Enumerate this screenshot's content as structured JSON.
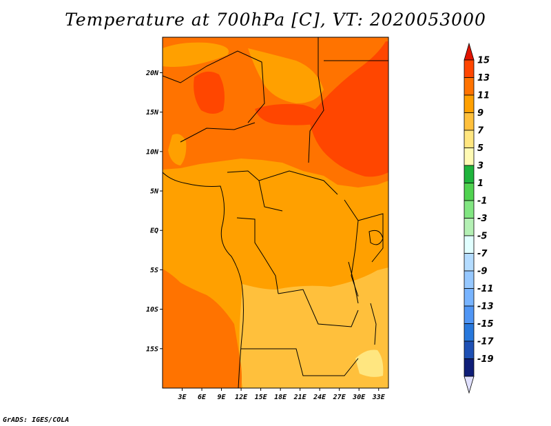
{
  "title": "Temperature at 700hPa [C], VT: 2020053000",
  "credit": "GrADS: IGES/COLA",
  "map": {
    "lon_range": [
      0,
      34.5
    ],
    "lat_range": [
      -20,
      24.5
    ],
    "lon_ticks": [
      {
        "value": 3,
        "label": "3E"
      },
      {
        "value": 6,
        "label": "6E"
      },
      {
        "value": 9,
        "label": "9E"
      },
      {
        "value": 12,
        "label": "12E"
      },
      {
        "value": 15,
        "label": "15E"
      },
      {
        "value": 18,
        "label": "18E"
      },
      {
        "value": 21,
        "label": "21E"
      },
      {
        "value": 24,
        "label": "24E"
      },
      {
        "value": 27,
        "label": "27E"
      },
      {
        "value": 30,
        "label": "30E"
      },
      {
        "value": 33,
        "label": "33E"
      }
    ],
    "lat_ticks": [
      {
        "value": 20,
        "label": "20N"
      },
      {
        "value": 15,
        "label": "15N"
      },
      {
        "value": 10,
        "label": "10N"
      },
      {
        "value": 5,
        "label": "5N"
      },
      {
        "value": 0,
        "label": "EQ"
      },
      {
        "value": -5,
        "label": "5S"
      },
      {
        "value": -10,
        "label": "10S"
      },
      {
        "value": -15,
        "label": "15S"
      }
    ],
    "field_colors": {
      "c5_7": "#ffe680",
      "c7_9": "#ffc03c",
      "c9_11": "#ffa000",
      "c11_13": "#ff7300",
      "c13_15": "#ff4600"
    }
  },
  "colorbar": {
    "labels": [
      "15",
      "13",
      "11",
      "9",
      "7",
      "5",
      "3",
      "1",
      "-1",
      "-3",
      "-5",
      "-7",
      "-9",
      "-11",
      "-13",
      "-15",
      "-17",
      "-19"
    ],
    "colors": [
      "#ff4600",
      "#ff7300",
      "#ffa000",
      "#ffc03c",
      "#ffe680",
      "#fffab4",
      "#1fb43c",
      "#50d250",
      "#82e682",
      "#b4f0b4",
      "#e1ffff",
      "#b4dcff",
      "#96c8ff",
      "#78b4ff",
      "#5096f5",
      "#2878dc",
      "#1e50b4",
      "#0f1e78"
    ],
    "top_color": "#e11400",
    "bottom_color": "#e1e1ff"
  }
}
